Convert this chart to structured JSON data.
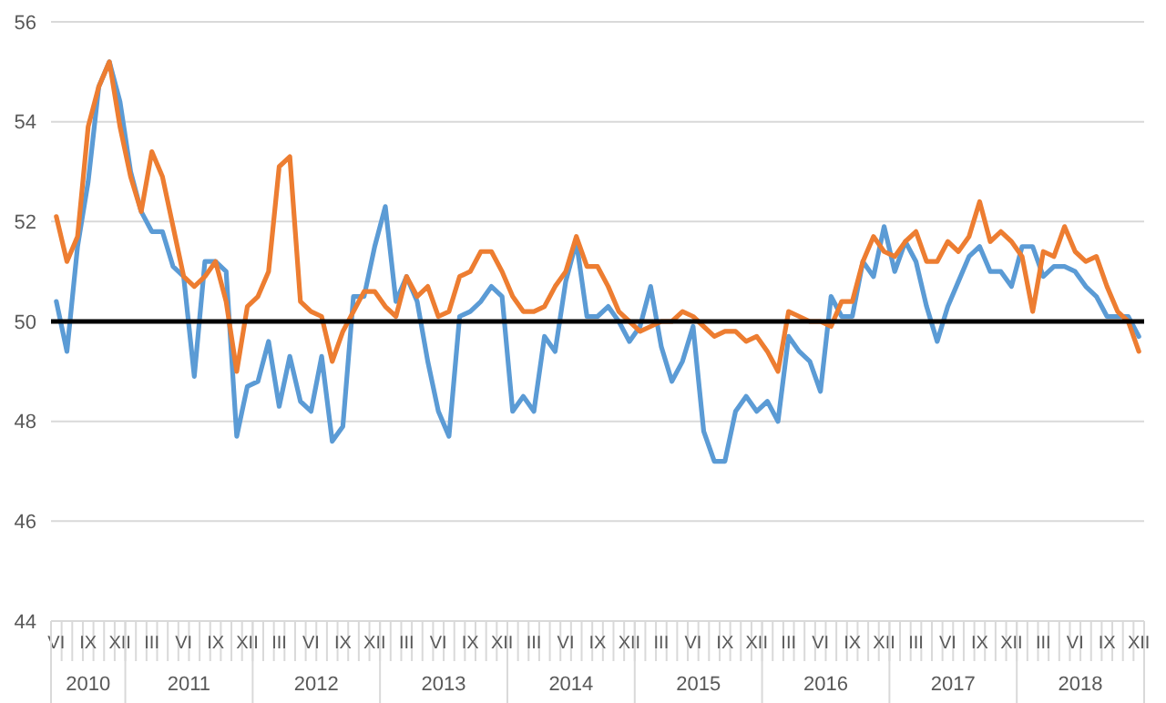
{
  "chart_data": {
    "type": "line",
    "categories": [
      "VI",
      null,
      null,
      "IX",
      null,
      null,
      "XII",
      null,
      null,
      "III",
      null,
      null,
      "VI",
      null,
      null,
      "IX",
      null,
      null,
      "XII",
      null,
      null,
      "III",
      null,
      null,
      "VI",
      null,
      null,
      "IX",
      null,
      null,
      "XII",
      null,
      null,
      "III",
      null,
      null,
      "VI",
      null,
      null,
      "IX",
      null,
      null,
      "XII",
      null,
      null,
      "III",
      null,
      null,
      "VI",
      null,
      null,
      "IX",
      null,
      null,
      "XII",
      null,
      null,
      "III",
      null,
      null,
      "VI",
      null,
      null,
      "IX",
      null,
      null,
      "XII",
      null,
      null,
      "III",
      null,
      null,
      "VI",
      null,
      null,
      "IX",
      null,
      null,
      "XII",
      null,
      null,
      "III",
      null,
      null,
      "VI",
      null,
      null,
      "IX",
      null,
      null,
      "XII",
      null,
      null,
      "III",
      null,
      null,
      "VI",
      null,
      null,
      "IX",
      null,
      null,
      "XII"
    ],
    "series": [
      {
        "color": "#5b9bd5",
        "values": [
          50.4,
          49.4,
          51.5,
          52.8,
          54.7,
          55.2,
          54.4,
          53.0,
          52.2,
          51.8,
          51.8,
          51.1,
          50.9,
          48.9,
          51.2,
          51.2,
          51.0,
          47.7,
          48.7,
          48.8,
          49.6,
          48.3,
          49.3,
          48.4,
          48.2,
          49.3,
          47.6,
          47.9,
          50.5,
          50.5,
          51.5,
          52.3,
          50.4,
          50.9,
          50.4,
          49.2,
          48.2,
          47.7,
          50.1,
          50.2,
          50.4,
          50.7,
          50.5,
          48.2,
          48.5,
          48.2,
          49.7,
          49.4,
          50.8,
          51.6,
          50.1,
          50.1,
          50.3,
          50.0,
          49.6,
          49.9,
          50.7,
          49.5,
          48.8,
          49.2,
          49.9,
          47.8,
          47.2,
          47.2,
          48.2,
          48.5,
          48.2,
          48.4,
          48.0,
          49.7,
          49.4,
          49.2,
          48.6,
          50.5,
          50.1,
          50.1,
          51.2,
          50.9,
          51.9,
          51.0,
          51.6,
          51.2,
          50.3,
          49.6,
          50.3,
          50.8,
          51.3,
          51.5,
          51.0,
          51.0,
          50.7,
          51.5,
          51.5,
          50.9,
          51.1,
          51.1,
          51.0,
          50.7,
          50.5,
          50.1,
          50.1,
          50.1,
          49.7
        ]
      },
      {
        "color": "#ed7d31",
        "values": [
          52.1,
          51.2,
          51.7,
          53.9,
          54.7,
          55.2,
          53.9,
          52.9,
          52.2,
          53.4,
          52.9,
          51.9,
          50.9,
          50.7,
          50.9,
          51.2,
          50.4,
          49.0,
          50.3,
          50.5,
          51.0,
          53.1,
          53.3,
          50.4,
          50.2,
          50.1,
          49.2,
          49.8,
          50.2,
          50.6,
          50.6,
          50.3,
          50.1,
          50.9,
          50.5,
          50.7,
          50.1,
          50.2,
          50.9,
          51.0,
          51.4,
          51.4,
          51.0,
          50.5,
          50.2,
          50.2,
          50.3,
          50.7,
          51.0,
          51.7,
          51.1,
          51.1,
          50.7,
          50.2,
          50.0,
          49.8,
          49.9,
          50.0,
          50.0,
          50.2,
          50.1,
          49.9,
          49.7,
          49.8,
          49.8,
          49.6,
          49.7,
          49.4,
          49.0,
          50.2,
          50.1,
          50.0,
          50.0,
          49.9,
          50.4,
          50.4,
          51.2,
          51.7,
          51.4,
          51.3,
          51.6,
          51.8,
          51.2,
          51.2,
          51.6,
          51.4,
          51.7,
          52.4,
          51.6,
          51.8,
          51.6,
          51.3,
          50.2,
          51.4,
          51.3,
          51.9,
          51.4,
          51.2,
          51.3,
          50.7,
          50.2,
          50.0,
          49.4
        ]
      }
    ],
    "ylim": [
      44,
      56
    ],
    "yticks": [
      44,
      46,
      48,
      50,
      52,
      54,
      56
    ],
    "grid": "y",
    "ref_lines": [
      {
        "axis": "y",
        "value": 50,
        "color": "#000000"
      }
    ],
    "annotations": [
      "2010",
      "2011",
      "2012",
      "2013",
      "2014",
      "2015",
      "2016",
      "2017",
      "2018"
    ]
  }
}
